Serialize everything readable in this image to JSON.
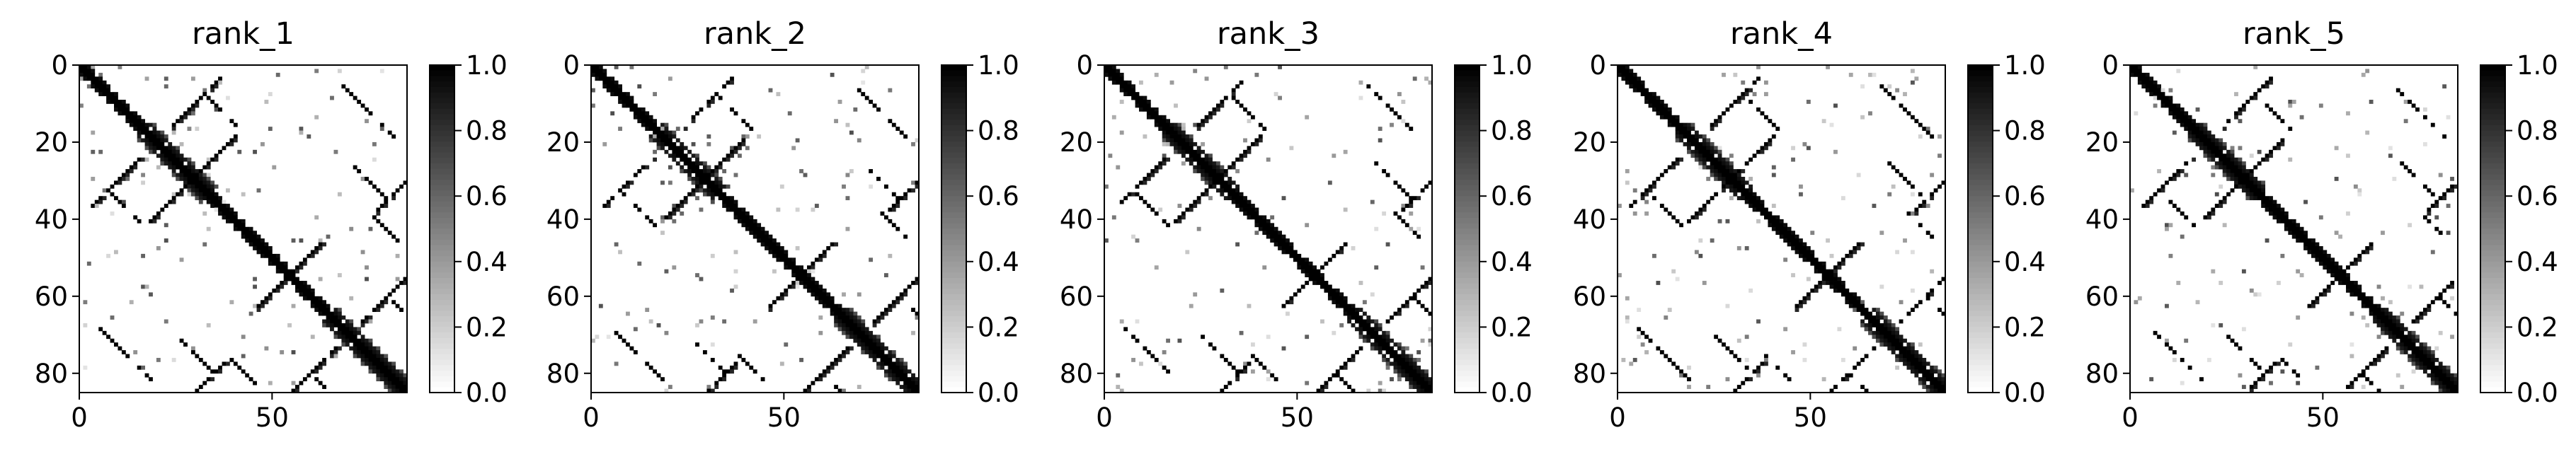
{
  "chart_data": [
    {
      "type": "heatmap",
      "title": "rank_1",
      "x_ticks": [
        "0",
        "50"
      ],
      "y_ticks": [
        "0",
        "20",
        "40",
        "60",
        "80"
      ],
      "xlim": [
        0,
        85
      ],
      "ylim": [
        85,
        0
      ],
      "colorbar": {
        "ticks": [
          "0.0",
          "0.2",
          "0.4",
          "0.6",
          "0.8",
          "1.0"
        ],
        "range": [
          0.0,
          1.0
        ],
        "colormap": "Greys"
      },
      "matrix_size": 85
    },
    {
      "type": "heatmap",
      "title": "rank_2",
      "x_ticks": [
        "0",
        "50"
      ],
      "y_ticks": [
        "0",
        "20",
        "40",
        "60",
        "80"
      ],
      "xlim": [
        0,
        85
      ],
      "ylim": [
        85,
        0
      ],
      "colorbar": {
        "ticks": [
          "0.0",
          "0.2",
          "0.4",
          "0.6",
          "0.8",
          "1.0"
        ],
        "range": [
          0.0,
          1.0
        ],
        "colormap": "Greys"
      },
      "matrix_size": 85
    },
    {
      "type": "heatmap",
      "title": "rank_3",
      "x_ticks": [
        "0",
        "50"
      ],
      "y_ticks": [
        "0",
        "20",
        "40",
        "60",
        "80"
      ],
      "xlim": [
        0,
        85
      ],
      "ylim": [
        85,
        0
      ],
      "colorbar": {
        "ticks": [
          "0.0",
          "0.2",
          "0.4",
          "0.6",
          "0.8",
          "1.0"
        ],
        "range": [
          0.0,
          1.0
        ],
        "colormap": "Greys"
      },
      "matrix_size": 85
    },
    {
      "type": "heatmap",
      "title": "rank_4",
      "x_ticks": [
        "0",
        "50"
      ],
      "y_ticks": [
        "0",
        "20",
        "40",
        "60",
        "80"
      ],
      "xlim": [
        0,
        85
      ],
      "ylim": [
        85,
        0
      ],
      "colorbar": {
        "ticks": [
          "0.0",
          "0.2",
          "0.4",
          "0.6",
          "0.8",
          "1.0"
        ],
        "range": [
          0.0,
          1.0
        ],
        "colormap": "Greys"
      },
      "matrix_size": 85
    },
    {
      "type": "heatmap",
      "title": "rank_5",
      "x_ticks": [
        "0",
        "50"
      ],
      "y_ticks": [
        "0",
        "20",
        "40",
        "60",
        "80"
      ],
      "xlim": [
        0,
        85
      ],
      "ylim": [
        85,
        0
      ],
      "colorbar": {
        "ticks": [
          "0.0",
          "0.2",
          "0.4",
          "0.6",
          "0.8",
          "1.0"
        ],
        "range": [
          0.0,
          1.0
        ],
        "colormap": "Greys"
      },
      "matrix_size": 85
    }
  ]
}
